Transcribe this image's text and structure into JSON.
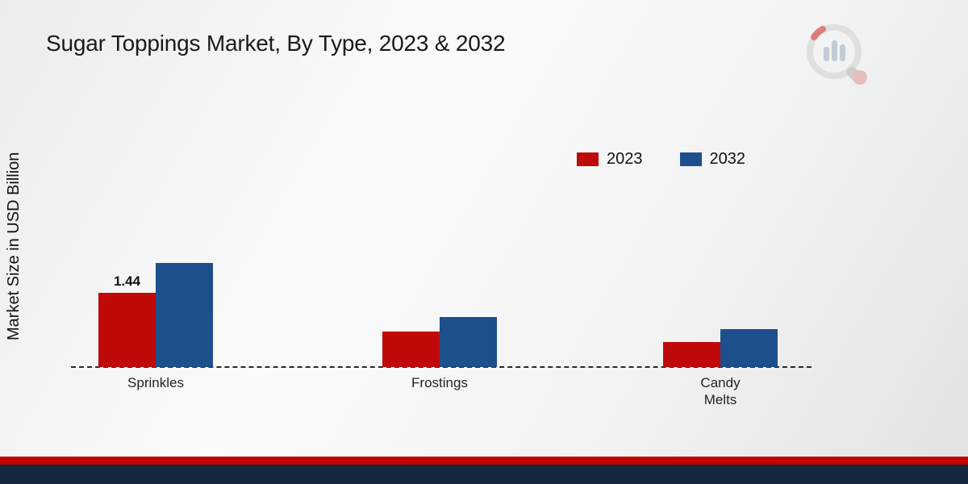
{
  "title": "Sugar Toppings Market, By Type, 2023 & 2032",
  "y_axis_label": "Market Size in USD Billion",
  "legend": {
    "items": [
      {
        "label": "2023",
        "color": "#c00a0a"
      },
      {
        "label": "2032",
        "color": "#1d4f8c"
      }
    ]
  },
  "chart_data": {
    "type": "bar",
    "title": "Sugar Toppings Market, By Type, 2023 & 2032",
    "xlabel": "",
    "ylabel": "Market Size in USD Billion",
    "categories": [
      "Sprinkles",
      "Frostings",
      "Candy Melts"
    ],
    "category_display_labels": [
      "Sprinkles",
      "Frostings",
      "Candy\nMelts"
    ],
    "series": [
      {
        "name": "2023",
        "color": "#c00a0a",
        "values": [
          1.44,
          0.69,
          0.49
        ]
      },
      {
        "name": "2032",
        "color": "#1d4f8c",
        "values": [
          2.02,
          0.97,
          0.74
        ]
      }
    ],
    "bar_labels": [
      {
        "series_index": 0,
        "category_index": 0,
        "text": "1.44"
      }
    ],
    "baseline_value": 0,
    "axis_style": "dashed-zero-line",
    "legend_position": "top-right",
    "grid": false
  },
  "colors": {
    "bar_2023": "#c00a0a",
    "bar_2032": "#1d4f8c",
    "footer_red": "#c00000",
    "footer_navy": "#16283f"
  },
  "branding": {
    "logo_icon": "bar-chart-magnifier-logo"
  }
}
